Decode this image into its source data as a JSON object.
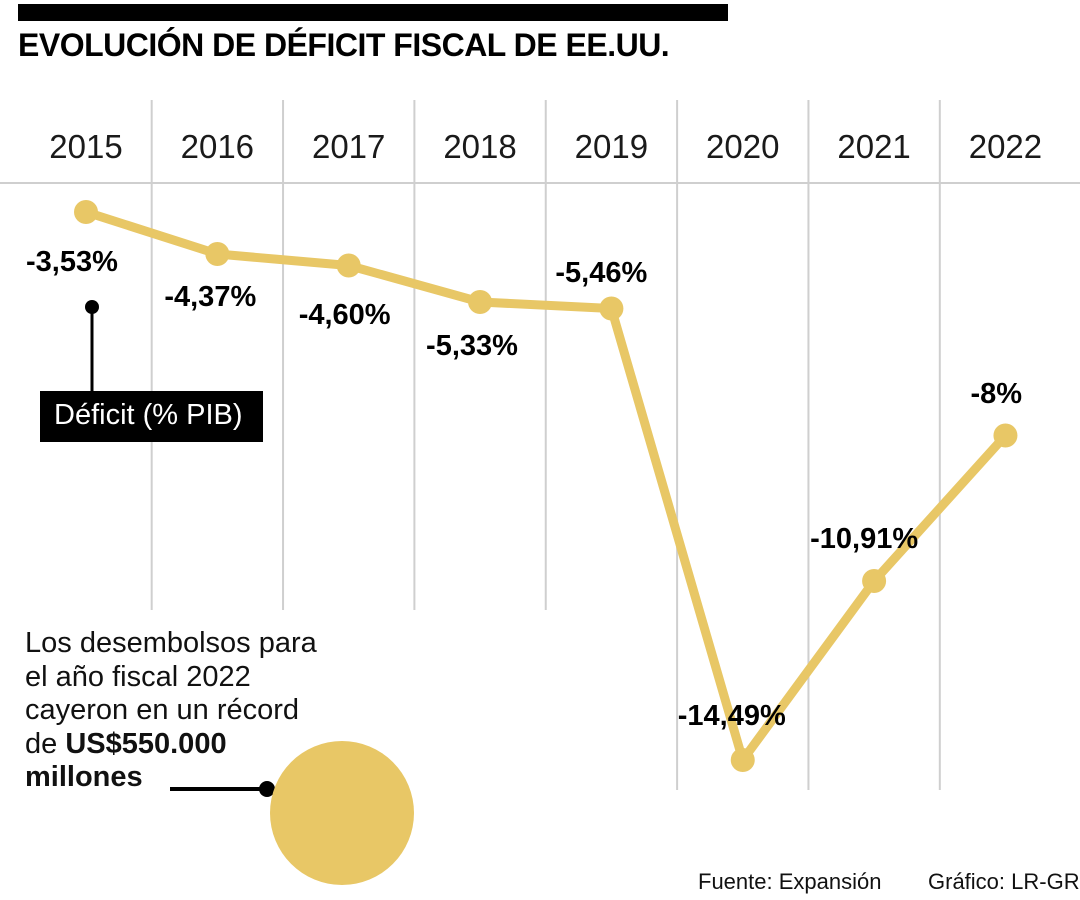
{
  "header": {
    "title": "EVOLUCIÓN DE DÉFICIT FISCAL DE EE.UU."
  },
  "chart_data": {
    "type": "line",
    "categories": [
      "2015",
      "2016",
      "2017",
      "2018",
      "2019",
      "2020",
      "2021",
      "2022"
    ],
    "values": [
      -3.53,
      -4.37,
      -4.6,
      -5.33,
      -5.46,
      -14.49,
      -10.91,
      -8
    ],
    "value_labels": [
      "-3,53%",
      "-4,37%",
      "-4,60%",
      "-5,33%",
      "-5,46%",
      "-14,49%",
      "-10,91%",
      "-8%"
    ],
    "series_label": "Déficit (% PIB)",
    "title": "EVOLUCIÓN DE DÉFICIT FISCAL DE EE.UU.",
    "xlabel": "",
    "ylabel": "Déficit (% PIB)",
    "ylim": [
      -15.5,
      -3
    ],
    "grid": true,
    "legend_position": "callout-left",
    "line_color": "#E8C766",
    "grid_color": "#cfcfcf"
  },
  "annotation": {
    "lines": [
      [
        {
          "t": "Los desembolsos para",
          "b": false
        }
      ],
      [
        {
          "t": "el año fiscal 2022",
          "b": false
        }
      ],
      [
        {
          "t": "cayeron en un récord",
          "b": false
        }
      ],
      [
        {
          "t": "de ",
          "b": false
        },
        {
          "t": "US$550.000",
          "b": true
        }
      ],
      [
        {
          "t": "millones",
          "b": true
        }
      ]
    ]
  },
  "footer": {
    "source": "Fuente: Expansión",
    "credit": "Gráfico: LR-GR"
  }
}
